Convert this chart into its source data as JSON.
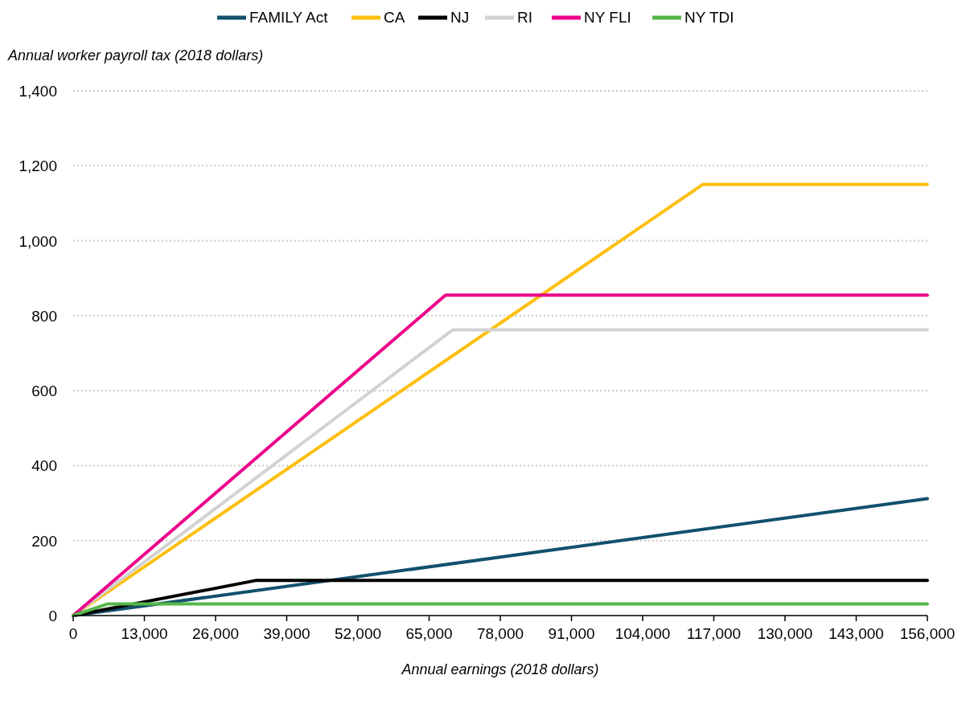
{
  "chart_data": {
    "type": "line",
    "xlabel": "Annual earnings (2018 dollars)",
    "ylabel": "Annual worker payroll tax (2018 dollars)",
    "xlim": [
      0,
      156000
    ],
    "xticks": [
      {
        "value": 0,
        "label": "0"
      },
      {
        "value": 13000,
        "label": "13,000"
      },
      {
        "value": 26000,
        "label": "26,000"
      },
      {
        "value": 39000,
        "label": "39,000"
      },
      {
        "value": 52000,
        "label": "52,000"
      },
      {
        "value": 65000,
        "label": "65,000"
      },
      {
        "value": 78000,
        "label": "78,000"
      },
      {
        "value": 91000,
        "label": "91,000"
      },
      {
        "value": 104000,
        "label": "104,000"
      },
      {
        "value": 117000,
        "label": "117,000"
      },
      {
        "value": 130000,
        "label": "130,000"
      },
      {
        "value": 143000,
        "label": "143,000"
      },
      {
        "value": 156000,
        "label": "156,000"
      }
    ],
    "ylim": [
      0,
      1400
    ],
    "yticks": [
      {
        "value": 0,
        "label": "0"
      },
      {
        "value": 200,
        "label": "200"
      },
      {
        "value": 400,
        "label": "400"
      },
      {
        "value": 600,
        "label": "600"
      },
      {
        "value": 800,
        "label": "800"
      },
      {
        "value": 1000,
        "label": "1,000"
      },
      {
        "value": 1200,
        "label": "1,200"
      },
      {
        "value": 1400,
        "label": "1,400"
      }
    ],
    "grid": "y",
    "legend": "top",
    "marker": "none",
    "line_style": "solid",
    "series": [
      {
        "name": "FAMILY Act",
        "color": "#12506e",
        "x": [
          0,
          156000
        ],
        "values": [
          0,
          312
        ]
      },
      {
        "name": "CA",
        "color": "#fdbf11",
        "x": [
          0,
          114967,
          156000
        ],
        "values": [
          0,
          1150,
          1150
        ]
      },
      {
        "name": "NJ",
        "color": "#000000",
        "x": [
          0,
          33500,
          156000
        ],
        "values": [
          0,
          94,
          94
        ]
      },
      {
        "name": "RI",
        "color": "#d2d2d2",
        "x": [
          0,
          69300,
          156000
        ],
        "values": [
          0,
          762,
          762
        ]
      },
      {
        "name": "NY FLI",
        "color": "#ec008b",
        "x": [
          0,
          68000,
          156000
        ],
        "values": [
          0,
          855,
          855
        ]
      },
      {
        "name": "NY TDI",
        "color": "#55b748",
        "x": [
          0,
          6240,
          156000
        ],
        "values": [
          0,
          31,
          31
        ]
      }
    ]
  }
}
